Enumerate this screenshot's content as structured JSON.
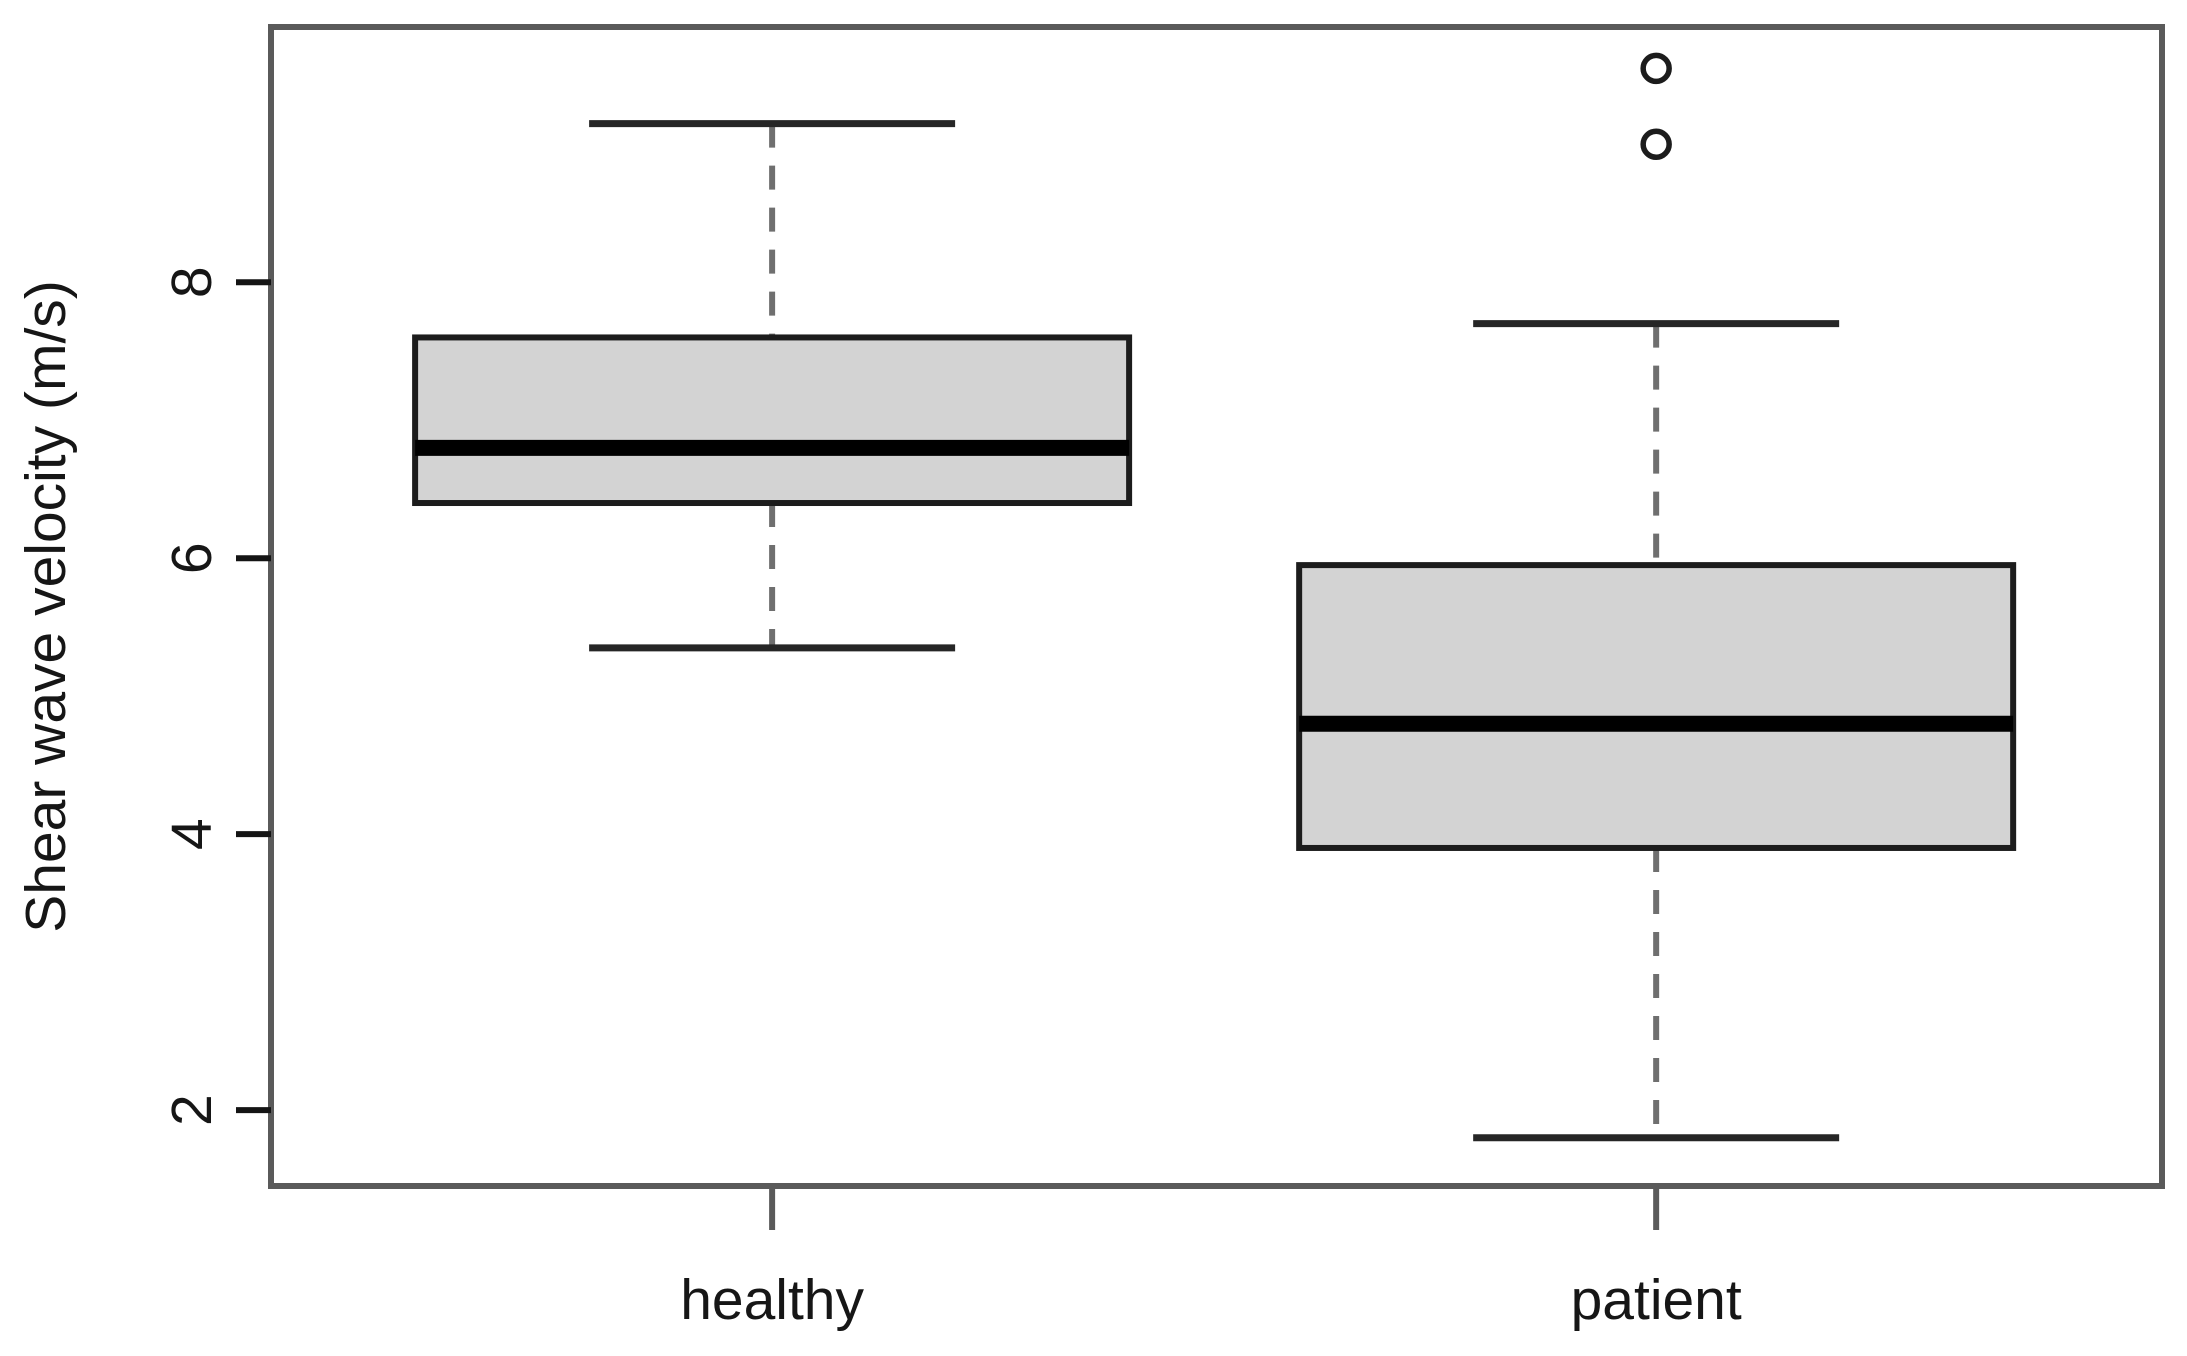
{
  "figure": {
    "background": "#ffffff"
  },
  "chart_data": {
    "type": "boxplot",
    "title": "",
    "xlabel": "",
    "ylabel": "Shear wave velocity (m/s)",
    "categories": [
      "healthy",
      "patient"
    ],
    "yticks": [
      2,
      4,
      6,
      8
    ],
    "ylim": [
      1.45,
      9.85
    ],
    "grid": false,
    "legend": "none",
    "series": [
      {
        "name": "healthy",
        "whisker_low": 5.35,
        "q1": 6.4,
        "median": 6.8,
        "q3": 7.6,
        "whisker_high": 9.15,
        "outliers": []
      },
      {
        "name": "patient",
        "whisker_low": 1.8,
        "q1": 3.9,
        "median": 4.8,
        "q3": 5.95,
        "whisker_high": 7.7,
        "outliers": [
          9.0,
          9.55
        ]
      }
    ],
    "colors": {
      "background": "#ffffff",
      "box_fill": "#d3d3d3",
      "box_border": "#1c1c1c",
      "median": "#000000",
      "whisker": "#6f6f6f",
      "cap": "#262626",
      "frame": "#5a5a5a",
      "tick": "#141414",
      "text": "#161616"
    }
  }
}
